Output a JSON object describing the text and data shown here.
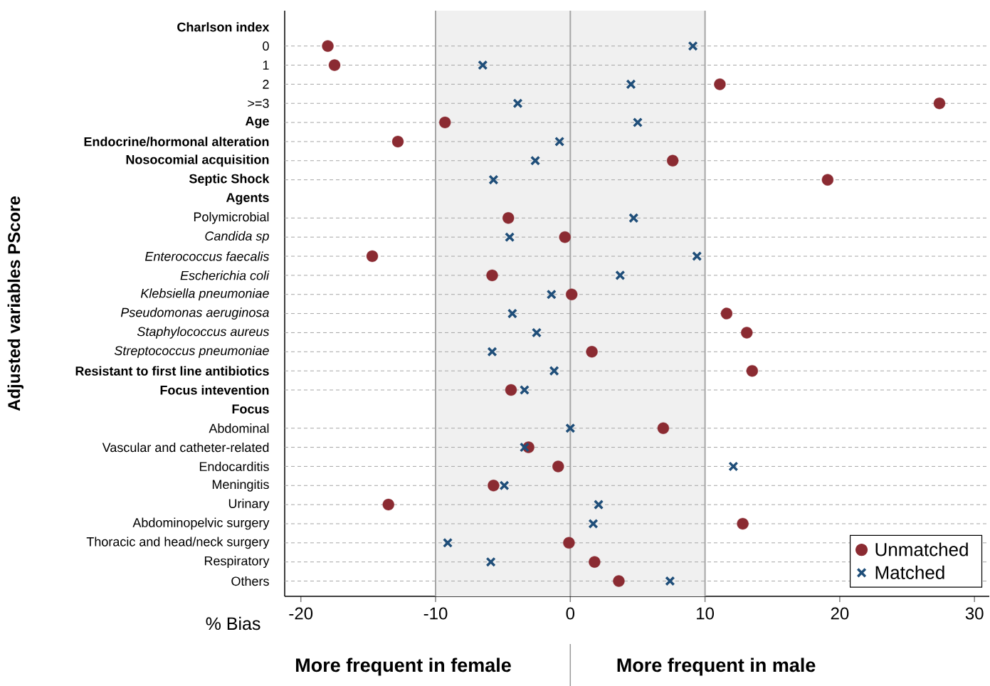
{
  "chart_data": {
    "type": "scatter",
    "orientation": "horizontal",
    "categories": [
      "**Charlson index**",
      "0",
      "1",
      "2",
      ">=3",
      "**Age**",
      "**Endocrine/hormonal alteration**",
      "**Nosocomial acquisition**",
      "**Septic Shock**",
      "**Agents**",
      "Polymicrobial",
      "*Candida sp*",
      "*Enterococcus faecalis*",
      "*Escherichia coli*",
      "*Klebsiella pneumoniae*",
      "*Pseudomonas aeruginosa*",
      "*Staphylococcus aureus*",
      "*Streptococcus pneumoniae*",
      "**Resistant to first line antibiotics**",
      "**Focus intevention**",
      "**Focus**",
      "Abdominal",
      "Vascular and catheter-related",
      "Endocarditis",
      "Meningitis",
      "Urinary",
      "Abdominopelvic surgery",
      "Thoracic and head/neck surgery",
      "Respiratory",
      "Others"
    ],
    "series": [
      {
        "name": "Unmatched",
        "color": "#8b2b32",
        "marker": "circle",
        "values": [
          null,
          -18.0,
          -17.5,
          11.1,
          27.4,
          -9.3,
          -12.8,
          7.6,
          19.1,
          null,
          -4.6,
          -0.4,
          -14.7,
          -5.8,
          0.1,
          11.6,
          13.1,
          1.6,
          13.5,
          -4.4,
          null,
          6.9,
          -3.1,
          -0.9,
          -5.7,
          -13.5,
          12.8,
          -0.1,
          1.8,
          3.6
        ]
      },
      {
        "name": "Matched",
        "color": "#1f4e79",
        "marker": "cross",
        "values": [
          null,
          9.1,
          -6.5,
          4.5,
          -3.9,
          5.0,
          -0.8,
          -2.6,
          -5.7,
          null,
          4.7,
          -4.5,
          9.4,
          3.7,
          -1.4,
          -4.3,
          -2.5,
          -5.8,
          -1.2,
          -3.4,
          null,
          0.0,
          -3.4,
          12.1,
          -4.9,
          2.1,
          1.7,
          -9.1,
          -5.9,
          7.4
        ]
      }
    ],
    "xlim": [
      -21.2,
      31.1
    ],
    "xticks": [
      -20,
      -10,
      0,
      10,
      20,
      30
    ],
    "xlabel": "% Bias",
    "ylabel": "Adjusted variables PScore",
    "bands": [
      {
        "axis": "x",
        "from": -10,
        "to": 10,
        "color": "#f0f0f0"
      }
    ],
    "ref_lines": [
      {
        "axis": "x",
        "value": -10,
        "color": "#a6a6a6"
      },
      {
        "axis": "x",
        "value": 0,
        "color": "#a6a6a6"
      },
      {
        "axis": "x",
        "value": 10,
        "color": "#a6a6a6"
      }
    ],
    "annotations": [
      "More frequent in female",
      "More frequent in male"
    ],
    "grid": "y",
    "line_style": "dashed",
    "legend": "bottom right"
  }
}
